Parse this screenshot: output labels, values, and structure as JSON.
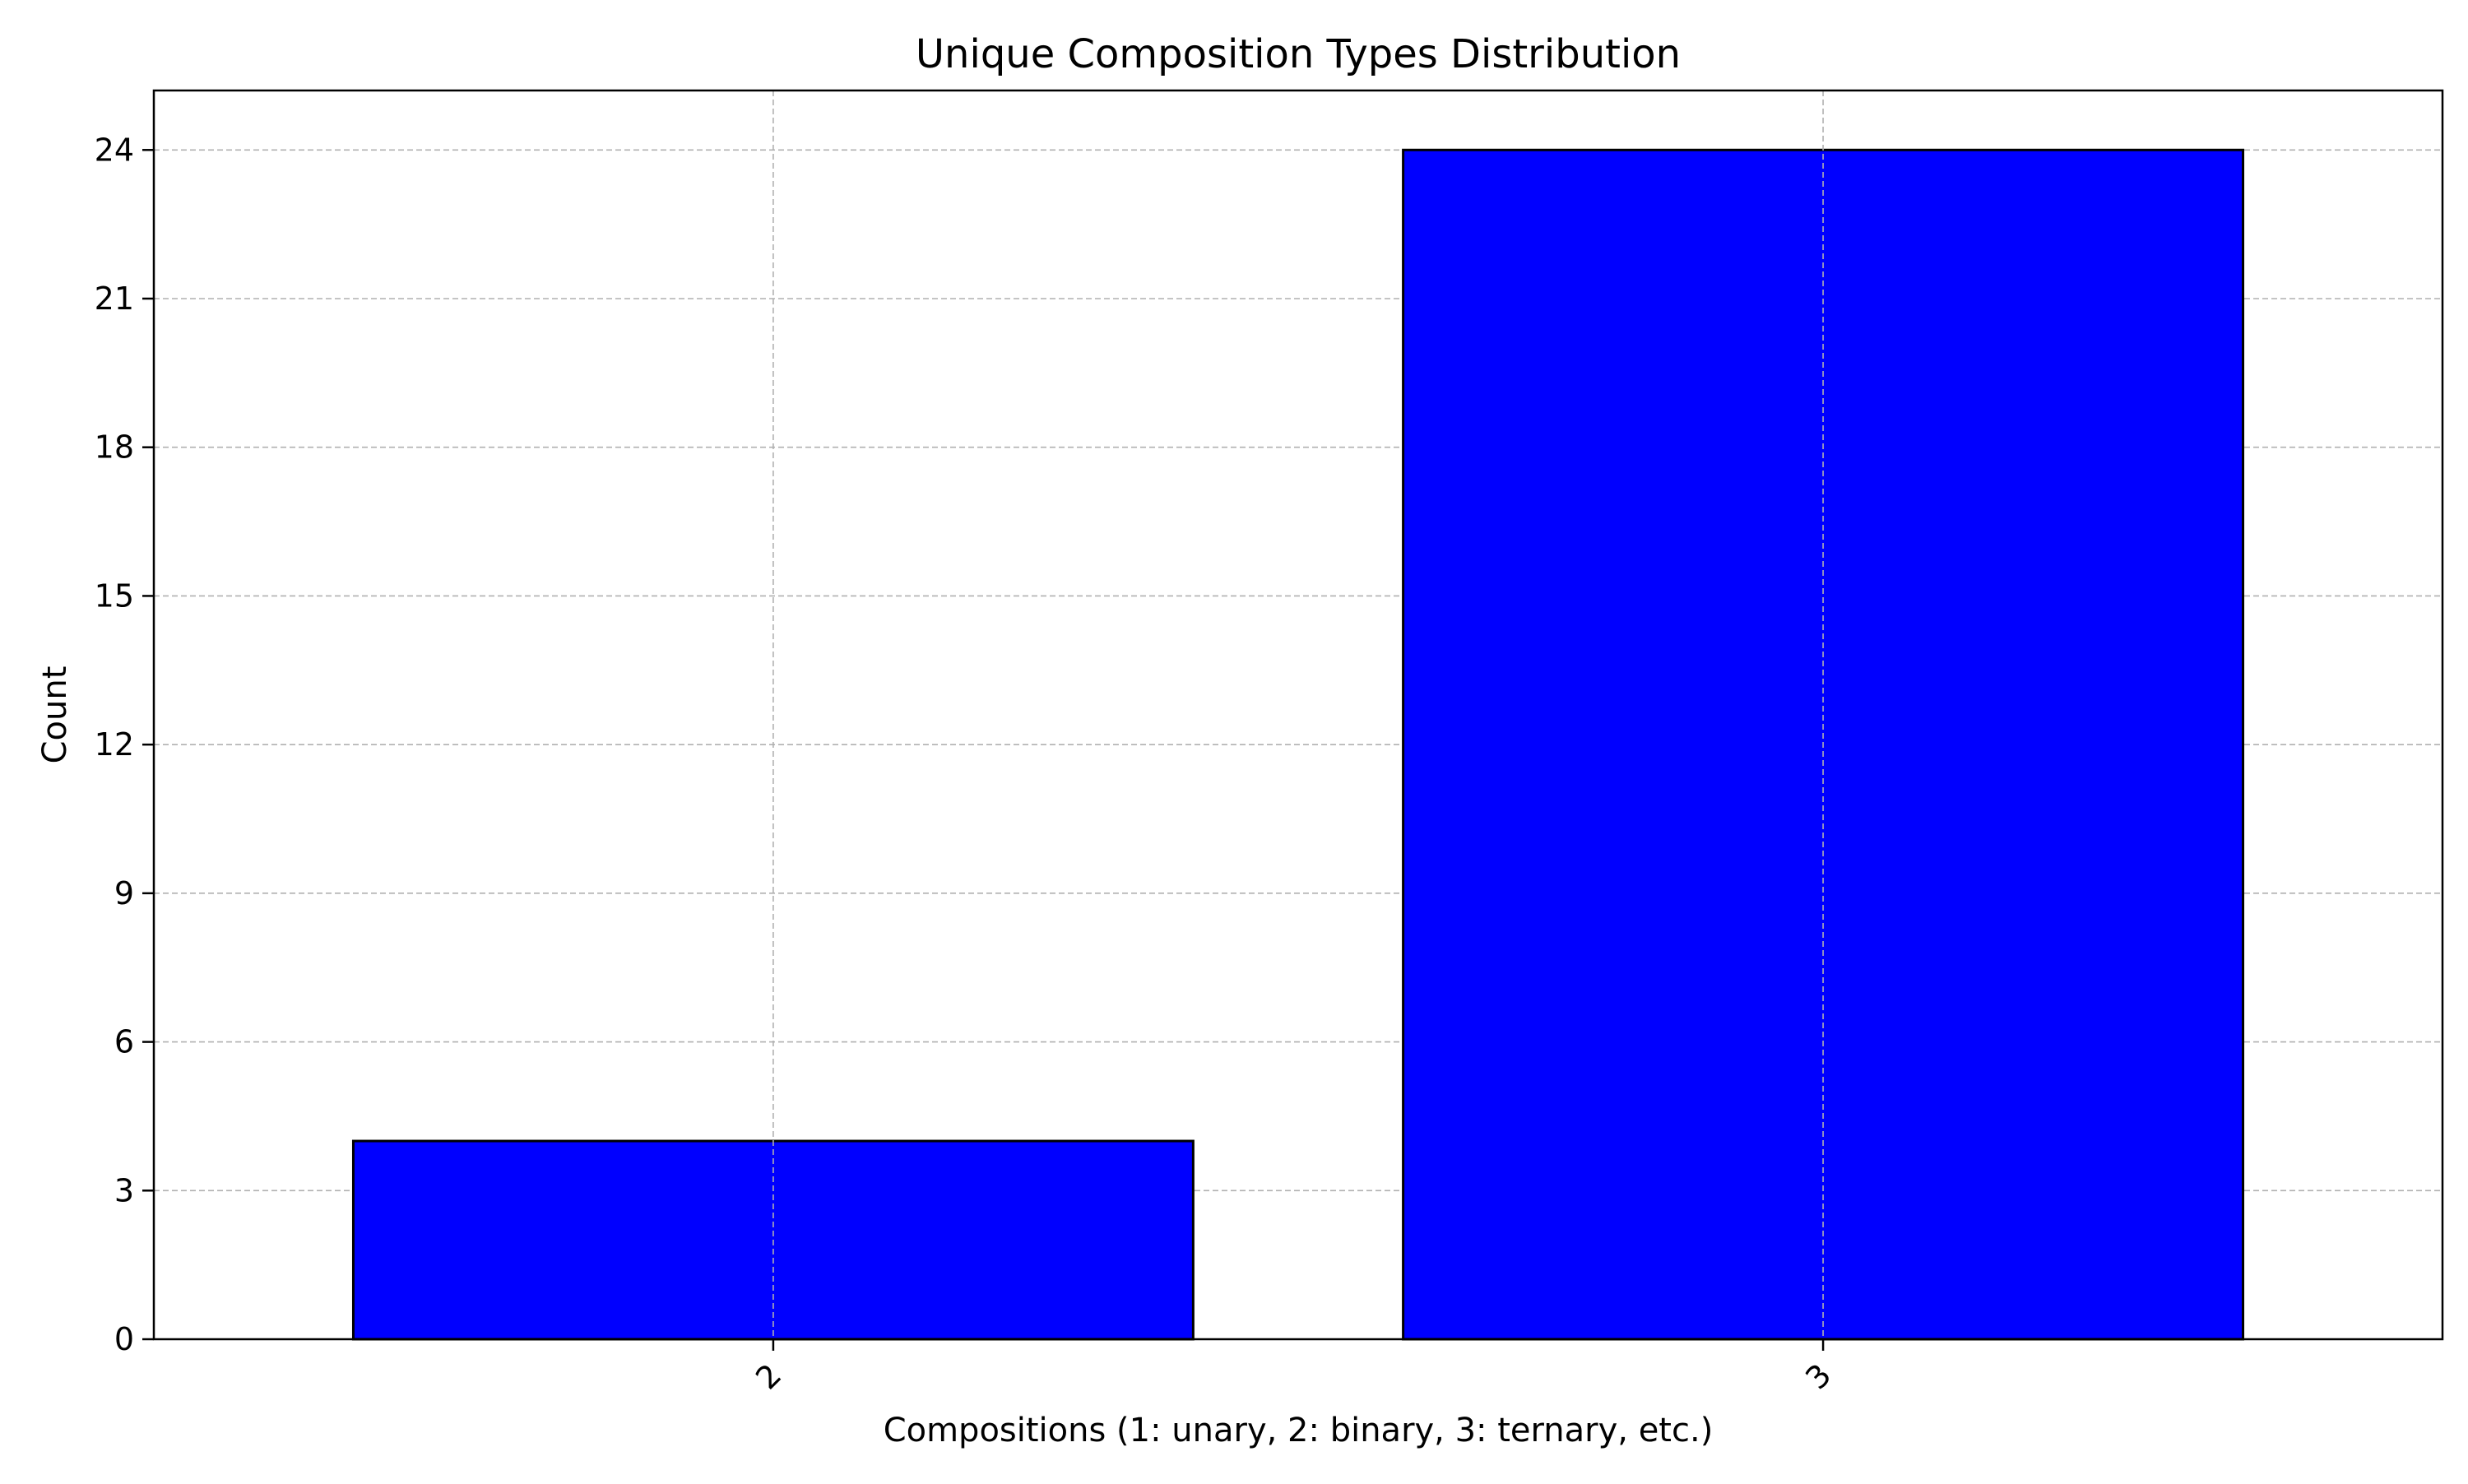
{
  "chart_data": {
    "type": "bar",
    "title": "Unique Composition Types Distribution",
    "xlabel": "Compositions (1: unary, 2: binary, 3: ternary, etc.)",
    "ylabel": "Count",
    "categories": [
      "2",
      "3"
    ],
    "values": [
      4,
      24
    ],
    "ylim": [
      0,
      25.2
    ],
    "yticks": [
      0,
      3,
      6,
      9,
      12,
      15,
      18,
      21,
      24
    ],
    "grid": true,
    "legend": "none",
    "bar_color": "#0000ff",
    "bar_edge_color": "#000000",
    "grid_color": "#b0b0b0",
    "xtick_rotation_deg": 45
  }
}
